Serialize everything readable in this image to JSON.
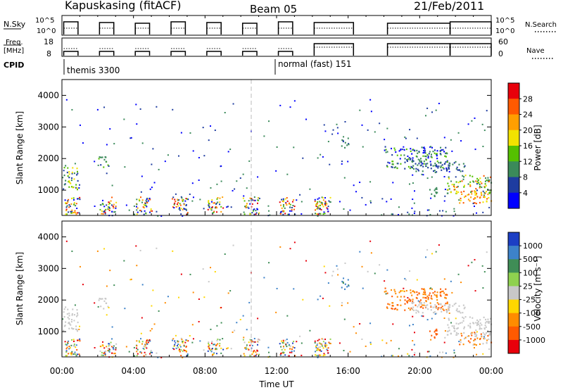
{
  "header": {
    "title": "Kapuskasing (fitACF)",
    "beam": "Beam 05",
    "date": "21/Feb/2011"
  },
  "strips": {
    "nsky_label": "N.Sky",
    "freq_label_line1": "Freq.",
    "freq_label_line2": "[MHz]",
    "cpid_label": "CPID",
    "nsearch_label": "N.Search",
    "nave_label": "Nave",
    "nsky_ticks": [
      "10^5",
      "10^0"
    ],
    "nsearch_ticks": [
      "10^5",
      "10^0"
    ],
    "freq_ticks": [
      "18",
      "8"
    ],
    "nave_ticks": [
      "60",
      "0"
    ],
    "cpid_entries": [
      {
        "label": "themis 3300",
        "start_hour": 0
      },
      {
        "label": "normal (fast) 151",
        "start_hour": 12
      }
    ]
  },
  "chart_data": [
    {
      "type": "heatmap",
      "panel": "power",
      "xlabel": "",
      "ylabel": "Slant Range [km]",
      "colorbar_label": "Power [dB]",
      "colorbar_ticks": [
        28,
        24,
        20,
        16,
        12,
        8,
        4
      ],
      "colorbar_colors": [
        "#e8000b",
        "#ff5a00",
        "#ff9f00",
        "#f2e200",
        "#55c000",
        "#3b8a5a",
        "#1e3ca0",
        "#0000ff"
      ],
      "xlim": [
        0,
        24
      ],
      "ylim": [
        200,
        4500
      ],
      "yticks": [
        1000,
        2000,
        3000,
        4000
      ]
    },
    {
      "type": "heatmap",
      "panel": "velocity",
      "xlabel": "Time UT",
      "ylabel": "Slant Range [km]",
      "colorbar_label": "Velocity [m s⁻¹]",
      "colorbar_ticks": [
        "1000",
        "500",
        "100",
        "25",
        "-25",
        "-100",
        "-500",
        "-1000"
      ],
      "colorbar_colors": [
        "#1c3fc4",
        "#3d82c9",
        "#3f8d56",
        "#8fd14f",
        "#c8c8c8",
        "#ffd700",
        "#ff8c00",
        "#ff5a00",
        "#e8000b"
      ],
      "xlim": [
        0,
        24
      ],
      "ylim": [
        200,
        4500
      ],
      "yticks": [
        1000,
        2000,
        3000,
        4000
      ],
      "xticks": [
        "00:00",
        "04:00",
        "08:00",
        "12:00",
        "16:00",
        "20:00",
        "00:00"
      ]
    }
  ]
}
